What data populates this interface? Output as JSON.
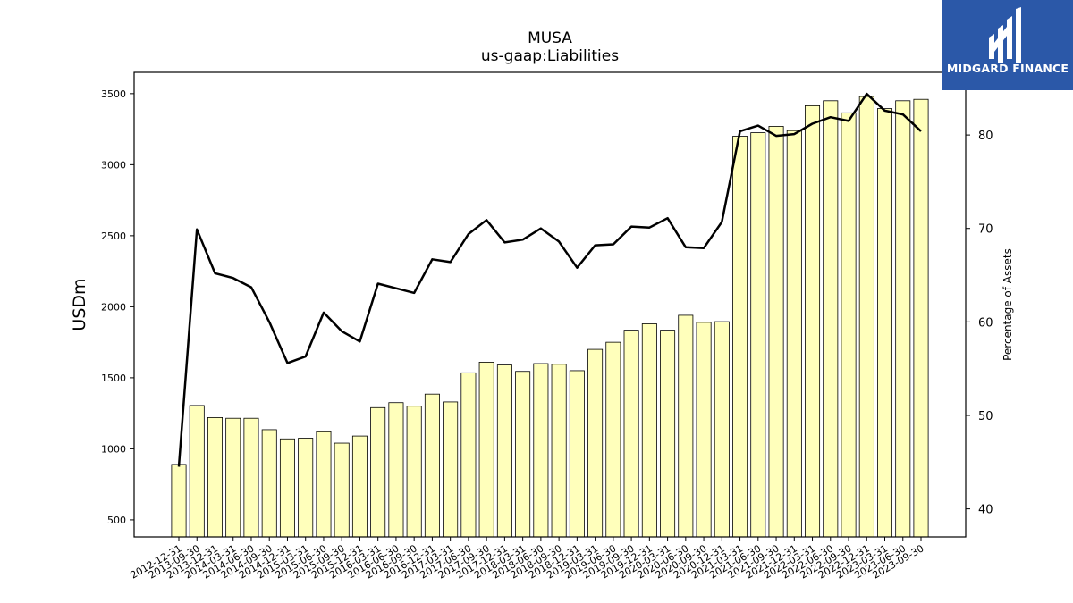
{
  "logo": {
    "text": "MIDGARD FINANCE"
  },
  "colors": {
    "bar_fill": "#ffffbb",
    "bar_stroke": "#000000",
    "line": "#000000",
    "logo_bg": "#2b58a8"
  },
  "chart_data": {
    "type": "bar",
    "title": "MUSA",
    "subtitle": "us-gaap:Liabilities",
    "ylabel": "USDm",
    "y2label": "Percentage of Assets",
    "ylim": [
      380,
      3650
    ],
    "y2lim": [
      37.0,
      86.7
    ],
    "yticks": [
      500,
      1000,
      1500,
      2000,
      2500,
      3000,
      3500
    ],
    "y2ticks": [
      40,
      50,
      60,
      70,
      80
    ],
    "categories": [
      "2012-12-31",
      "2013-09-30",
      "2013-12-31",
      "2014-03-31",
      "2014-06-30",
      "2014-09-30",
      "2014-12-31",
      "2015-03-31",
      "2015-06-30",
      "2015-09-30",
      "2015-12-31",
      "2016-03-31",
      "2016-06-30",
      "2016-09-30",
      "2016-12-31",
      "2017-03-31",
      "2017-06-30",
      "2017-09-30",
      "2017-12-31",
      "2018-03-31",
      "2018-06-30",
      "2018-09-30",
      "2018-12-31",
      "2019-03-31",
      "2019-06-30",
      "2019-09-30",
      "2019-12-31",
      "2020-03-31",
      "2020-06-30",
      "2020-09-30",
      "2020-12-31",
      "2021-03-31",
      "2021-06-30",
      "2021-09-30",
      "2021-12-31",
      "2022-03-31",
      "2022-06-30",
      "2022-09-30",
      "2022-12-31",
      "2023-03-31",
      "2023-06-30",
      "2023-09-30"
    ],
    "series": [
      {
        "name": "",
        "type": "bar",
        "axis": "left",
        "values": [
          890,
          1305,
          1220,
          1215,
          1215,
          1135,
          1070,
          1075,
          1120,
          1040,
          1090,
          1290,
          1325,
          1300,
          1385,
          1330,
          1535,
          1610,
          1590,
          1545,
          1600,
          1595,
          1550,
          1700,
          1750,
          1835,
          1880,
          1835,
          1940,
          1890,
          1895,
          3200,
          3225,
          3270,
          3240,
          3415,
          3450,
          3365,
          3480,
          3395,
          3450,
          3460
        ]
      },
      {
        "name": "",
        "type": "line",
        "axis": "right",
        "values": [
          44.5,
          69.9,
          65.2,
          64.7,
          63.7,
          60.0,
          55.6,
          56.3,
          61.0,
          59.0,
          57.9,
          64.1,
          63.6,
          63.1,
          66.7,
          66.4,
          69.4,
          70.9,
          68.5,
          68.8,
          70.0,
          68.6,
          65.8,
          68.2,
          68.3,
          70.2,
          70.1,
          71.1,
          68.0,
          67.9,
          70.7,
          80.4,
          81.0,
          79.9,
          80.1,
          81.2,
          81.9,
          81.5,
          84.4,
          82.6,
          82.2,
          80.4
        ]
      }
    ]
  }
}
